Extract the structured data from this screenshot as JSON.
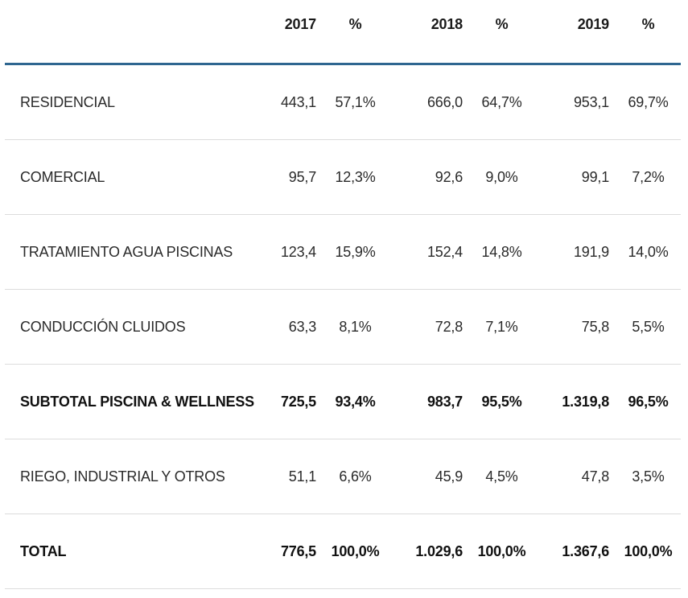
{
  "table": {
    "headers": [
      "",
      "2017",
      "%",
      "2018",
      "%",
      "2019",
      "%"
    ],
    "rows": [
      {
        "label": "RESIDENCIAL",
        "v2017": "443,1",
        "p2017": "57,1%",
        "v2018": "666,0",
        "p2018": "64,7%",
        "v2019": "953,1",
        "p2019": "69,7%",
        "bold": false
      },
      {
        "label": "COMERCIAL",
        "v2017": "95,7",
        "p2017": "12,3%",
        "v2018": "92,6",
        "p2018": "9,0%",
        "v2019": "99,1",
        "p2019": "7,2%",
        "bold": false
      },
      {
        "label": "TRATAMIENTO AGUA PISCINAS",
        "v2017": "123,4",
        "p2017": "15,9%",
        "v2018": "152,4",
        "p2018": "14,8%",
        "v2019": "191,9",
        "p2019": "14,0%",
        "bold": false
      },
      {
        "label": "CONDUCCIÓN CLUIDOS",
        "v2017": "63,3",
        "p2017": "8,1%",
        "v2018": "72,8",
        "p2018": "7,1%",
        "v2019": "75,8",
        "p2019": "5,5%",
        "bold": false
      },
      {
        "label": "SUBTOTAL PISCINA & WELLNESS",
        "v2017": "725,5",
        "p2017": "93,4%",
        "v2018": "983,7",
        "p2018": "95,5%",
        "v2019": "1.319,8",
        "p2019": "96,5%",
        "bold": true
      },
      {
        "label": "RIEGO, INDUSTRIAL Y OTROS",
        "v2017": "51,1",
        "p2017": "6,6%",
        "v2018": "45,9",
        "p2018": "4,5%",
        "v2019": "47,8",
        "p2019": "3,5%",
        "bold": false
      },
      {
        "label": "TOTAL",
        "v2017": "776,5",
        "p2017": "100,0%",
        "v2018": "1.029,6",
        "p2018": "100,0%",
        "v2019": "1.367,6",
        "p2019": "100,0%",
        "bold": true
      }
    ]
  },
  "colors": {
    "header_rule": "#2f6690",
    "row_rule": "#dcdcdc",
    "text": "#222222"
  }
}
